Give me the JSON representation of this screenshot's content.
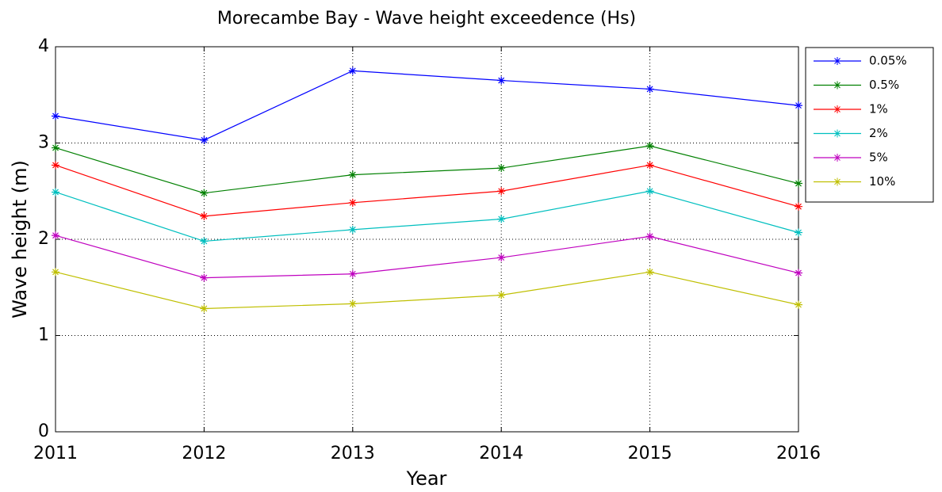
{
  "chart_data": {
    "type": "line",
    "title": "Morecambe Bay - Wave height exceedence (Hs)",
    "x_label": "Year",
    "y_label": "Wave height (m)",
    "x": [
      2011,
      2012,
      2013,
      2014,
      2015,
      2016
    ],
    "xlim": [
      2011,
      2016
    ],
    "xticks": [
      2011,
      2012,
      2013,
      2014,
      2015,
      2016
    ],
    "ylim": [
      0,
      4
    ],
    "yticks": [
      0,
      1,
      2,
      3,
      4
    ],
    "grid": true,
    "legend": "outside-top-right",
    "series": [
      {
        "name": "0.05%",
        "color": "#0000ff",
        "values": [
          3.28,
          3.03,
          3.75,
          3.65,
          3.56,
          3.39
        ]
      },
      {
        "name": "0.5%",
        "color": "#008000",
        "values": [
          2.95,
          2.48,
          2.67,
          2.74,
          2.97,
          2.58
        ]
      },
      {
        "name": "1%",
        "color": "#ff0000",
        "values": [
          2.77,
          2.24,
          2.38,
          2.5,
          2.77,
          2.34
        ]
      },
      {
        "name": "2%",
        "color": "#00bfbf",
        "values": [
          2.49,
          1.98,
          2.1,
          2.21,
          2.5,
          2.07
        ]
      },
      {
        "name": "5%",
        "color": "#bf00bf",
        "values": [
          2.04,
          1.6,
          1.64,
          1.81,
          2.03,
          1.65
        ]
      },
      {
        "name": "10%",
        "color": "#bfbf00",
        "values": [
          1.66,
          1.28,
          1.33,
          1.42,
          1.66,
          1.32
        ]
      }
    ]
  }
}
